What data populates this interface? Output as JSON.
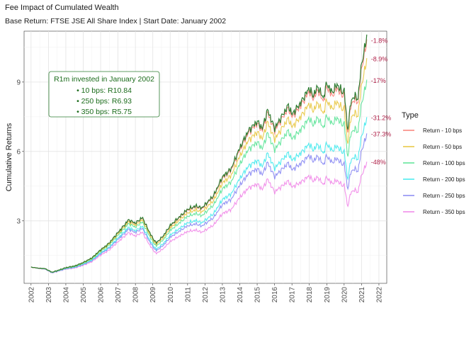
{
  "chart_data": {
    "type": "line",
    "title": "Fee Impact of Cumulated Wealth",
    "subtitle": "Base Return: FTSE JSE All Share Index | Start Date: January 2002",
    "xlabel": "",
    "ylabel": "Cumulative Returns",
    "xlim": [
      2001.6,
      2022.45
    ],
    "ylim": [
      0.3,
      11.2
    ],
    "x_ticks": [
      "2002",
      "2003",
      "2004",
      "2005",
      "2006",
      "2007",
      "2008",
      "2009",
      "2010",
      "2011",
      "2012",
      "2013",
      "2014",
      "2015",
      "2016",
      "2017",
      "2018",
      "2019",
      "2020",
      "2021",
      "2022"
    ],
    "y_ticks": [
      "3",
      "6",
      "9"
    ],
    "grid": true,
    "legend": {
      "title": "Type",
      "placement": "right"
    },
    "base_series": {
      "name": "",
      "color": "#2e7d32",
      "x": [
        2002.0,
        2002.5,
        2002.8,
        2003.2,
        2003.5,
        2004.0,
        2004.5,
        2005.0,
        2005.5,
        2006.0,
        2006.3,
        2006.5,
        2007.0,
        2007.4,
        2007.6,
        2008.0,
        2008.4,
        2008.75,
        2009.0,
        2009.2,
        2009.6,
        2010.0,
        2010.5,
        2011.0,
        2011.5,
        2011.8,
        2012.0,
        2012.5,
        2013.0,
        2013.5,
        2014.0,
        2014.5,
        2015.0,
        2015.3,
        2015.6,
        2016.0,
        2016.4,
        2016.8,
        2017.0,
        2017.5,
        2018.0,
        2018.2,
        2018.5,
        2018.8,
        2019.0,
        2019.3,
        2019.6,
        2019.9,
        2020.0,
        2020.2,
        2020.4,
        2020.6,
        2020.8,
        2021.0,
        2021.2,
        2021.3
      ],
      "values": [
        1.0,
        0.95,
        0.94,
        0.78,
        0.85,
        0.98,
        1.05,
        1.2,
        1.4,
        1.75,
        1.92,
        2.05,
        2.5,
        2.85,
        3.05,
        2.9,
        3.15,
        2.6,
        2.25,
        2.05,
        2.35,
        2.8,
        3.15,
        3.5,
        3.65,
        3.55,
        3.7,
        4.1,
        4.9,
        5.25,
        6.15,
        6.9,
        7.3,
        7.0,
        7.8,
        7.0,
        7.5,
        8.0,
        7.6,
        8.1,
        8.75,
        8.4,
        8.8,
        8.3,
        8.95,
        8.55,
        8.9,
        8.55,
        8.7,
        6.9,
        8.2,
        8.4,
        8.3,
        9.8,
        10.5,
        11.0
      ]
    },
    "series": [
      {
        "name": "Return - 10 bps",
        "color": "#f8766d",
        "fee_bps": 10,
        "end_label": "-1.8%"
      },
      {
        "name": "Return - 50 bps",
        "color": "#e6c230",
        "fee_bps": 50,
        "end_label": "-8.9%"
      },
      {
        "name": "Return - 100 bps",
        "color": "#4fe28f",
        "fee_bps": 100,
        "end_label": "-17%"
      },
      {
        "name": "Return - 200 bps",
        "color": "#35e8ec",
        "fee_bps": 200,
        "end_label": "-31.2%"
      },
      {
        "name": "Return - 250 bps",
        "color": "#7f7ff2",
        "fee_bps": 250,
        "end_label": "-37.3%"
      },
      {
        "name": "Return - 350 bps",
        "color": "#f07ee6",
        "fee_bps": 350,
        "end_label": "-48%"
      }
    ],
    "annotation": {
      "title": "R1m invested in January 2002",
      "lines": [
        "• 10 bps: R10.84",
        "• 250 bps: R6.93",
        "• 350 bps: R5.75"
      ]
    }
  }
}
